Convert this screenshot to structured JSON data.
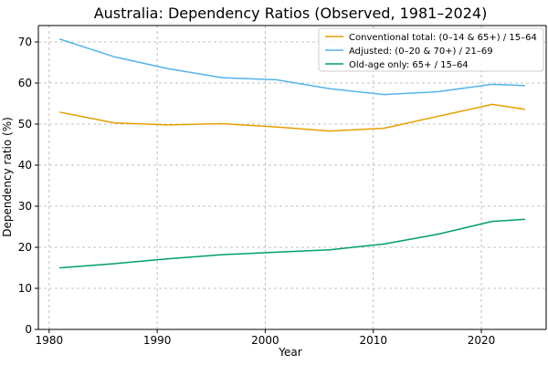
{
  "chart_data": {
    "type": "line",
    "title": "Australia: Dependency Ratios (Observed, 1981–2024)",
    "xlabel": "Year",
    "ylabel": "Dependency ratio (%)",
    "xlim": [
      1979,
      2026
    ],
    "ylim": [
      0,
      74
    ],
    "xticks": [
      1980,
      1990,
      2000,
      2010,
      2020
    ],
    "yticks": [
      0,
      10,
      20,
      30,
      40,
      50,
      60,
      70
    ],
    "grid": true,
    "legend_position": "top-right",
    "x": [
      1981,
      1986,
      1991,
      1996,
      2001,
      2006,
      2011,
      2016,
      2021,
      2024
    ],
    "series": [
      {
        "name": "Conventional total: (0–14 & 65+) / 15–64",
        "color": "#E69F00",
        "values": [
          52.9,
          50.3,
          49.8,
          50.1,
          49.3,
          48.3,
          49.0,
          51.9,
          54.8,
          53.6
        ]
      },
      {
        "name": "Adjusted: (0–20 & 70+) / 21–69",
        "color": "#56B4E9",
        "values": [
          70.7,
          66.4,
          63.5,
          61.3,
          60.8,
          58.6,
          57.2,
          57.9,
          59.7,
          59.4
        ]
      },
      {
        "name": "Old-age only: 65+ / 15–64",
        "color": "#009E73",
        "values": [
          15.0,
          16.0,
          17.2,
          18.2,
          18.8,
          19.4,
          20.8,
          23.2,
          26.3,
          26.8
        ]
      }
    ]
  }
}
